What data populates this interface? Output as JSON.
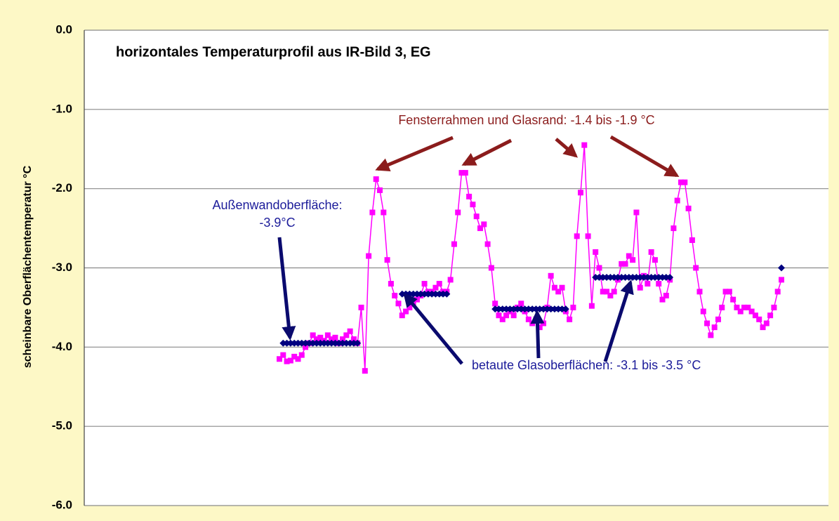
{
  "chart_data": {
    "type": "line",
    "title": "horizontales Temperaturprofil aus IR-Bild 3, EG",
    "y_label": "scheinbare Oberflächentemperatur  °C",
    "annotations": [
      "Fensterrahmen und Glasrand: -1.4 bis -1.9 °C",
      "Außenwandoberfläche:",
      "-3.9°C",
      "betaute Glasoberflächen: -3.1 bis -3.5 °C"
    ],
    "ylim": [
      -6,
      0
    ],
    "yticks": [
      {
        "value": 0,
        "label": "0.0"
      },
      {
        "value": -1,
        "label": "-1.0"
      },
      {
        "value": -2,
        "label": "-2.0"
      },
      {
        "value": -3,
        "label": "-3.0"
      },
      {
        "value": -4,
        "label": "-4.0"
      },
      {
        "value": -5,
        "label": "-5.0"
      },
      {
        "value": -6,
        "label": "-6.0"
      }
    ],
    "grid": true,
    "categories": [
      null,
      null,
      null,
      null,
      null,
      null,
      null,
      null,
      null,
      null,
      null,
      null,
      null,
      null,
      null,
      null,
      null,
      null,
      null,
      null,
      null,
      null,
      null,
      null,
      null,
      null,
      null,
      null,
      null,
      null,
      null,
      null,
      null,
      null,
      null,
      null,
      null,
      null,
      null,
      null,
      null,
      null,
      null,
      null,
      null,
      null,
      null,
      null,
      null,
      null,
      null,
      null,
      null,
      null,
      null,
      null,
      null,
      null,
      null,
      null,
      null,
      null,
      null,
      null,
      null,
      null,
      null,
      null,
      null,
      null,
      null,
      null,
      null,
      null,
      null,
      null,
      null,
      null,
      null,
      null,
      null,
      null,
      null,
      null,
      null,
      null,
      null,
      null,
      null,
      null,
      null,
      null,
      null,
      null,
      null,
      null,
      null,
      null,
      null,
      null,
      null,
      null,
      null,
      null,
      null,
      null,
      null,
      null,
      null,
      null,
      null,
      null,
      null,
      null,
      null,
      null,
      null,
      null,
      null,
      null,
      null,
      null,
      null,
      null,
      null,
      null,
      null,
      null,
      null,
      null,
      null,
      null,
      null,
      null,
      null,
      null
    ],
    "series": [
      {
        "color": "#ff00ff",
        "marker": "square",
        "values": [
          -4.15,
          -4.1,
          -4.18,
          -4.17,
          -4.12,
          -4.15,
          -4.1,
          -4.0,
          -3.95,
          -3.85,
          -3.9,
          -3.88,
          -3.92,
          -3.85,
          -3.9,
          -3.88,
          -3.95,
          -3.9,
          -3.85,
          -3.8,
          -3.9,
          -3.95,
          -3.5,
          -4.3,
          -2.85,
          -2.3,
          -1.88,
          -2.02,
          -2.3,
          -2.9,
          -3.2,
          -3.35,
          -3.45,
          -3.6,
          -3.55,
          -3.5,
          -3.45,
          -3.4,
          -3.35,
          -3.2,
          -3.3,
          -3.3,
          -3.25,
          -3.2,
          -3.3,
          -3.3,
          -3.15,
          -2.7,
          -2.3,
          -1.8,
          -1.8,
          -2.1,
          -2.2,
          -2.35,
          -2.5,
          -2.45,
          -2.7,
          -3.0,
          -3.45,
          -3.6,
          -3.65,
          -3.6,
          -3.55,
          -3.6,
          -3.5,
          -3.45,
          -3.55,
          -3.65,
          -3.7,
          -3.65,
          -3.75,
          -3.7,
          -3.5,
          -3.1,
          -3.25,
          -3.3,
          -3.25,
          -3.55,
          -3.65,
          -3.5,
          -2.6,
          -2.05,
          -1.45,
          -2.6,
          -3.48,
          -2.8,
          -3.0,
          -3.3,
          -3.3,
          -3.35,
          -3.3,
          -3.15,
          -2.95,
          -2.95,
          -2.85,
          -2.9,
          -2.3,
          -3.25,
          -3.1,
          -3.2,
          -2.8,
          -2.9,
          -3.2,
          -3.4,
          -3.35,
          -3.15,
          -2.5,
          -2.15,
          -1.92,
          -1.92,
          -2.25,
          -2.65,
          -3.0,
          -3.3,
          -3.55,
          -3.7,
          -3.85,
          -3.75,
          -3.65,
          -3.5,
          -3.3,
          -3.3,
          -3.4,
          -3.5,
          -3.55,
          -3.5,
          -3.5,
          -3.55,
          -3.6,
          -3.65,
          -3.75,
          -3.7,
          -3.6,
          -3.5,
          -3.3,
          -3.15
        ]
      },
      {
        "color": "#000080",
        "marker": "diamond",
        "values": [
          null,
          -3.95,
          -3.95,
          -3.95,
          -3.95,
          -3.95,
          -3.95,
          -3.95,
          -3.95,
          -3.95,
          -3.95,
          -3.95,
          -3.95,
          -3.95,
          -3.95,
          -3.95,
          -3.95,
          -3.95,
          -3.95,
          -3.95,
          -3.95,
          -3.95,
          null,
          null,
          null,
          null,
          null,
          null,
          null,
          null,
          null,
          null,
          null,
          -3.33,
          -3.33,
          -3.33,
          -3.33,
          -3.33,
          -3.33,
          -3.33,
          -3.33,
          -3.33,
          -3.33,
          -3.33,
          -3.33,
          -3.33,
          null,
          null,
          null,
          null,
          null,
          null,
          null,
          null,
          null,
          null,
          null,
          null,
          -3.52,
          -3.52,
          -3.52,
          -3.52,
          -3.52,
          -3.52,
          -3.52,
          -3.52,
          -3.52,
          -3.52,
          -3.52,
          -3.52,
          -3.52,
          -3.52,
          -3.52,
          -3.52,
          -3.52,
          -3.52,
          -3.52,
          -3.52,
          null,
          null,
          null,
          null,
          null,
          null,
          null,
          -3.12,
          -3.12,
          -3.12,
          -3.12,
          -3.12,
          -3.12,
          -3.12,
          -3.12,
          -3.12,
          -3.12,
          -3.12,
          -3.12,
          -3.12,
          -3.12,
          -3.12,
          -3.12,
          -3.12,
          -3.12,
          -3.12,
          -3.12,
          -3.12,
          null,
          null,
          null,
          null,
          null,
          null,
          null,
          null,
          null,
          null,
          null,
          null,
          null,
          null,
          null,
          null,
          null,
          null,
          null,
          null,
          null,
          null,
          null,
          null,
          null,
          null,
          null,
          null,
          null,
          -3.0
        ]
      }
    ]
  }
}
